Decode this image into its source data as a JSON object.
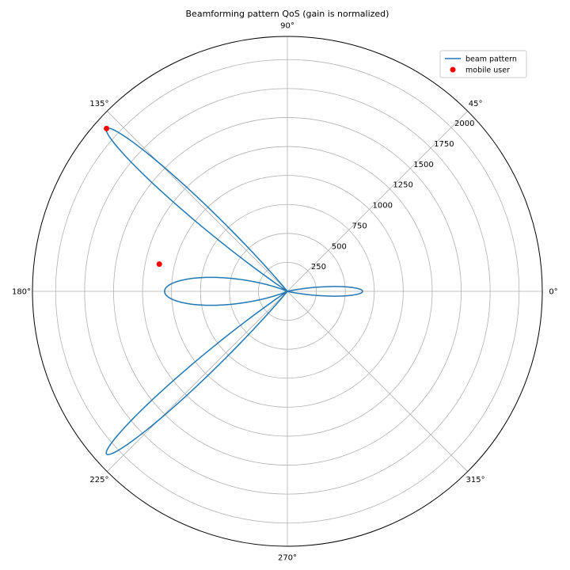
{
  "chart_data": {
    "type": "polar",
    "title": "Beamforming pattern QoS (gain is normalized)",
    "r_max": 2200,
    "radial_ticks": [
      250,
      500,
      750,
      1000,
      1250,
      1500,
      1750,
      2000
    ],
    "radial_tick_labels": [
      "250",
      "500",
      "750",
      "1000",
      "1250",
      "1500",
      "1750",
      "2000"
    ],
    "radial_label_angle_deg": 45,
    "angle_ticks_deg": [
      0,
      45,
      90,
      135,
      180,
      225,
      270,
      315
    ],
    "angle_tick_labels": [
      "0°",
      "45°",
      "90°",
      "135°",
      "180°",
      "225°",
      "270°",
      "315°"
    ],
    "grid": true,
    "legend": {
      "position": "top-right",
      "entries": [
        "beam pattern",
        "mobile user"
      ]
    },
    "series": [
      {
        "name": "beam pattern",
        "kind": "line",
        "color": "#1f77b4",
        "lobes": [
          {
            "center_deg": 0,
            "peak": 650,
            "halfwidth_deg": 14
          },
          {
            "center_deg": 138,
            "peak": 2100,
            "halfwidth_deg": 9
          },
          {
            "center_deg": 180,
            "peak": 1060,
            "halfwidth_deg": 25
          },
          {
            "center_deg": 222,
            "peak": 2100,
            "halfwidth_deg": 9
          }
        ]
      },
      {
        "name": "mobile user",
        "kind": "scatter",
        "color": "#ff0000",
        "points": [
          {
            "theta_deg": 138,
            "r": 2100
          },
          {
            "theta_deg": 168,
            "r": 1130
          }
        ]
      }
    ]
  }
}
